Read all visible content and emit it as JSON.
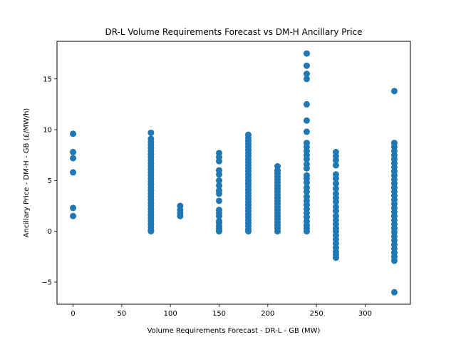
{
  "chart_data": {
    "type": "scatter",
    "title": "DR-L Volume Requirements Forecast vs DM-H Ancillary Price",
    "xlabel": "Volume Requirements Forecast - DR-L - GB (MW)",
    "ylabel": "Ancillary Price - DM-H - GB (£/MW/h)",
    "xlim": [
      -16.5,
      346.5
    ],
    "ylim": [
      -7.18,
      18.7
    ],
    "xticks": [
      0,
      50,
      100,
      150,
      200,
      250,
      300
    ],
    "yticks": [
      -5,
      0,
      5,
      10,
      15
    ],
    "grid": false,
    "marker_color": "#1f77b4",
    "series": [
      {
        "points": [
          [
            0,
            9.6
          ],
          [
            0,
            7.8
          ],
          [
            0,
            7.2
          ],
          [
            0,
            5.8
          ],
          [
            0,
            2.3
          ],
          [
            0,
            1.5
          ],
          [
            80,
            9.7
          ],
          [
            80,
            9.1
          ],
          [
            80,
            8.8
          ],
          [
            80,
            8.5
          ],
          [
            80,
            8.2
          ],
          [
            80,
            7.9
          ],
          [
            80,
            7.6
          ],
          [
            80,
            7.3
          ],
          [
            80,
            7.0
          ],
          [
            80,
            6.7
          ],
          [
            80,
            6.4
          ],
          [
            80,
            6.1
          ],
          [
            80,
            5.8
          ],
          [
            80,
            5.5
          ],
          [
            80,
            5.2
          ],
          [
            80,
            4.9
          ],
          [
            80,
            4.6
          ],
          [
            80,
            4.3
          ],
          [
            80,
            4.0
          ],
          [
            80,
            3.7
          ],
          [
            80,
            3.4
          ],
          [
            80,
            3.1
          ],
          [
            80,
            2.8
          ],
          [
            80,
            2.5
          ],
          [
            80,
            2.2
          ],
          [
            80,
            1.9
          ],
          [
            80,
            1.6
          ],
          [
            80,
            1.3
          ],
          [
            80,
            1.0
          ],
          [
            80,
            0.7
          ],
          [
            80,
            0.4
          ],
          [
            80,
            0.1
          ],
          [
            80,
            0.0
          ],
          [
            110,
            2.5
          ],
          [
            110,
            2.1
          ],
          [
            110,
            1.8
          ],
          [
            110,
            1.5
          ],
          [
            150,
            7.7
          ],
          [
            150,
            7.3
          ],
          [
            150,
            6.9
          ],
          [
            150,
            6.0
          ],
          [
            150,
            5.6
          ],
          [
            150,
            5.0
          ],
          [
            150,
            4.5
          ],
          [
            150,
            4.0
          ],
          [
            150,
            3.7
          ],
          [
            150,
            3.0
          ],
          [
            150,
            2.1
          ],
          [
            150,
            1.8
          ],
          [
            150,
            1.5
          ],
          [
            150,
            1.0
          ],
          [
            150,
            0.8
          ],
          [
            150,
            0.5
          ],
          [
            150,
            0.3
          ],
          [
            150,
            0.1
          ],
          [
            150,
            0.0
          ],
          [
            180,
            9.5
          ],
          [
            180,
            9.2
          ],
          [
            180,
            8.9
          ],
          [
            180,
            8.6
          ],
          [
            180,
            8.3
          ],
          [
            180,
            8.0
          ],
          [
            180,
            7.7
          ],
          [
            180,
            7.4
          ],
          [
            180,
            7.1
          ],
          [
            180,
            6.8
          ],
          [
            180,
            6.5
          ],
          [
            180,
            6.2
          ],
          [
            180,
            5.9
          ],
          [
            180,
            5.6
          ],
          [
            180,
            5.3
          ],
          [
            180,
            5.0
          ],
          [
            180,
            4.7
          ],
          [
            180,
            4.4
          ],
          [
            180,
            4.1
          ],
          [
            180,
            3.8
          ],
          [
            180,
            3.5
          ],
          [
            180,
            3.2
          ],
          [
            180,
            2.9
          ],
          [
            180,
            2.6
          ],
          [
            180,
            2.3
          ],
          [
            180,
            2.0
          ],
          [
            180,
            1.7
          ],
          [
            180,
            1.4
          ],
          [
            180,
            1.1
          ],
          [
            180,
            0.8
          ],
          [
            180,
            0.5
          ],
          [
            180,
            0.2
          ],
          [
            180,
            0.0
          ],
          [
            210,
            6.4
          ],
          [
            210,
            6.0
          ],
          [
            210,
            5.7
          ],
          [
            210,
            5.4
          ],
          [
            210,
            5.1
          ],
          [
            210,
            4.8
          ],
          [
            210,
            4.5
          ],
          [
            210,
            4.2
          ],
          [
            210,
            3.9
          ],
          [
            210,
            3.6
          ],
          [
            210,
            3.3
          ],
          [
            210,
            3.0
          ],
          [
            210,
            2.7
          ],
          [
            210,
            2.4
          ],
          [
            210,
            2.1
          ],
          [
            210,
            1.8
          ],
          [
            210,
            1.5
          ],
          [
            210,
            1.2
          ],
          [
            210,
            0.9
          ],
          [
            210,
            0.6
          ],
          [
            210,
            0.3
          ],
          [
            210,
            0.0
          ],
          [
            240,
            17.5
          ],
          [
            240,
            16.3
          ],
          [
            240,
            15.5
          ],
          [
            240,
            15.0
          ],
          [
            240,
            12.5
          ],
          [
            240,
            10.9
          ],
          [
            240,
            9.8
          ],
          [
            240,
            8.7
          ],
          [
            240,
            8.3
          ],
          [
            240,
            7.9
          ],
          [
            240,
            7.5
          ],
          [
            240,
            7.1
          ],
          [
            240,
            6.6
          ],
          [
            240,
            6.2
          ],
          [
            240,
            5.5
          ],
          [
            240,
            5.2
          ],
          [
            240,
            4.8
          ],
          [
            240,
            4.3
          ],
          [
            240,
            3.9
          ],
          [
            240,
            3.4
          ],
          [
            240,
            3.0
          ],
          [
            240,
            2.6
          ],
          [
            240,
            2.2
          ],
          [
            240,
            1.8
          ],
          [
            240,
            1.4
          ],
          [
            240,
            1.0
          ],
          [
            240,
            0.6
          ],
          [
            240,
            0.3
          ],
          [
            240,
            0.0
          ],
          [
            270,
            7.8
          ],
          [
            270,
            7.4
          ],
          [
            270,
            7.0
          ],
          [
            270,
            6.5
          ],
          [
            270,
            5.6
          ],
          [
            270,
            5.2
          ],
          [
            270,
            4.7
          ],
          [
            270,
            4.2
          ],
          [
            270,
            3.7
          ],
          [
            270,
            3.3
          ],
          [
            270,
            2.9
          ],
          [
            270,
            2.4
          ],
          [
            270,
            2.0
          ],
          [
            270,
            1.5
          ],
          [
            270,
            1.1
          ],
          [
            270,
            0.7
          ],
          [
            270,
            0.3
          ],
          [
            270,
            0.0
          ],
          [
            270,
            -0.4
          ],
          [
            270,
            -0.8
          ],
          [
            270,
            -1.2
          ],
          [
            270,
            -1.6
          ],
          [
            270,
            -2.0
          ],
          [
            270,
            -2.3
          ],
          [
            270,
            -2.6
          ],
          [
            330,
            13.8
          ],
          [
            330,
            8.7
          ],
          [
            330,
            8.3
          ],
          [
            330,
            7.9
          ],
          [
            330,
            7.5
          ],
          [
            330,
            7.1
          ],
          [
            330,
            6.7
          ],
          [
            330,
            6.3
          ],
          [
            330,
            5.9
          ],
          [
            330,
            5.5
          ],
          [
            330,
            5.1
          ],
          [
            330,
            4.7
          ],
          [
            330,
            4.3
          ],
          [
            330,
            3.9
          ],
          [
            330,
            3.5
          ],
          [
            330,
            3.1
          ],
          [
            330,
            2.7
          ],
          [
            330,
            2.3
          ],
          [
            330,
            1.9
          ],
          [
            330,
            1.5
          ],
          [
            330,
            1.1
          ],
          [
            330,
            0.7
          ],
          [
            330,
            0.3
          ],
          [
            330,
            -0.1
          ],
          [
            330,
            -0.5
          ],
          [
            330,
            -0.9
          ],
          [
            330,
            -1.3
          ],
          [
            330,
            -1.7
          ],
          [
            330,
            -2.1
          ],
          [
            330,
            -2.5
          ],
          [
            330,
            -2.9
          ],
          [
            330,
            -6.0
          ]
        ]
      }
    ]
  }
}
